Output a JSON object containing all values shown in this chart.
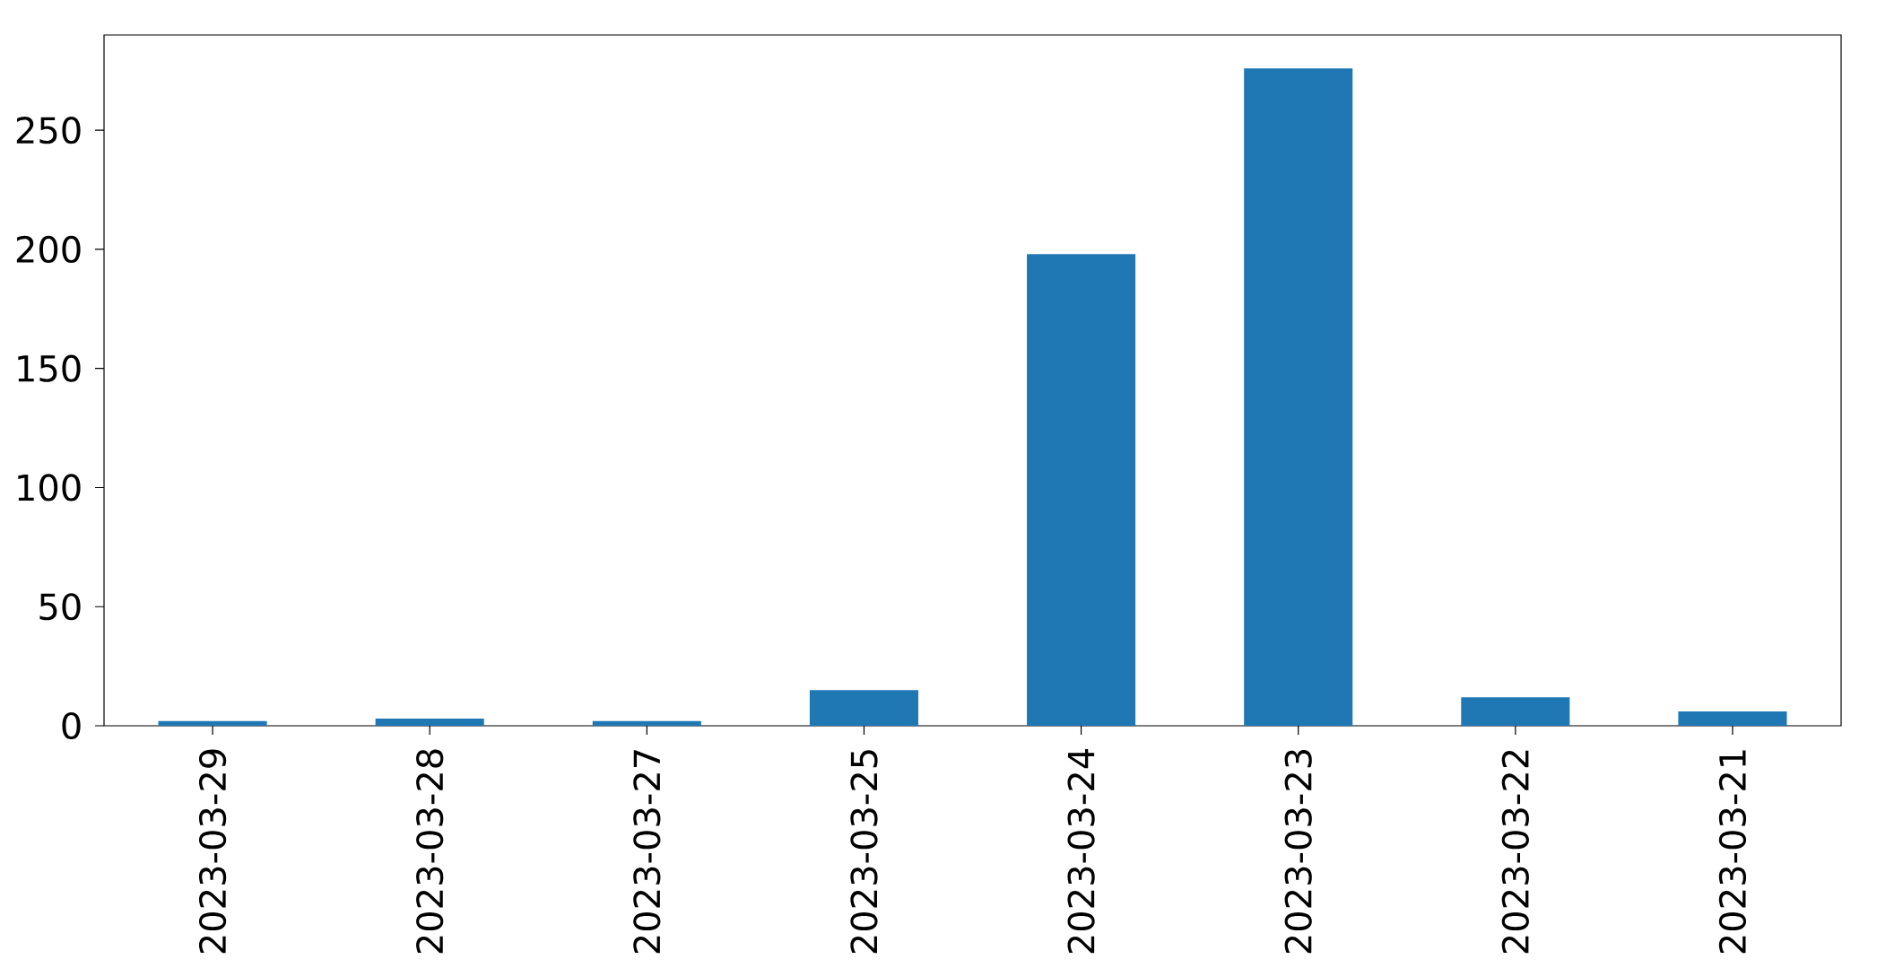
{
  "chart_data": {
    "type": "bar",
    "categories": [
      "2023-03-29",
      "2023-03-28",
      "2023-03-27",
      "2023-03-25",
      "2023-03-24",
      "2023-03-23",
      "2023-03-22",
      "2023-03-21"
    ],
    "values": [
      2,
      3,
      2,
      15,
      198,
      276,
      12,
      6
    ],
    "color": "#1f77b4",
    "ylim": [
      0,
      290
    ],
    "yticks": [
      0,
      50,
      100,
      150,
      200,
      250
    ]
  }
}
